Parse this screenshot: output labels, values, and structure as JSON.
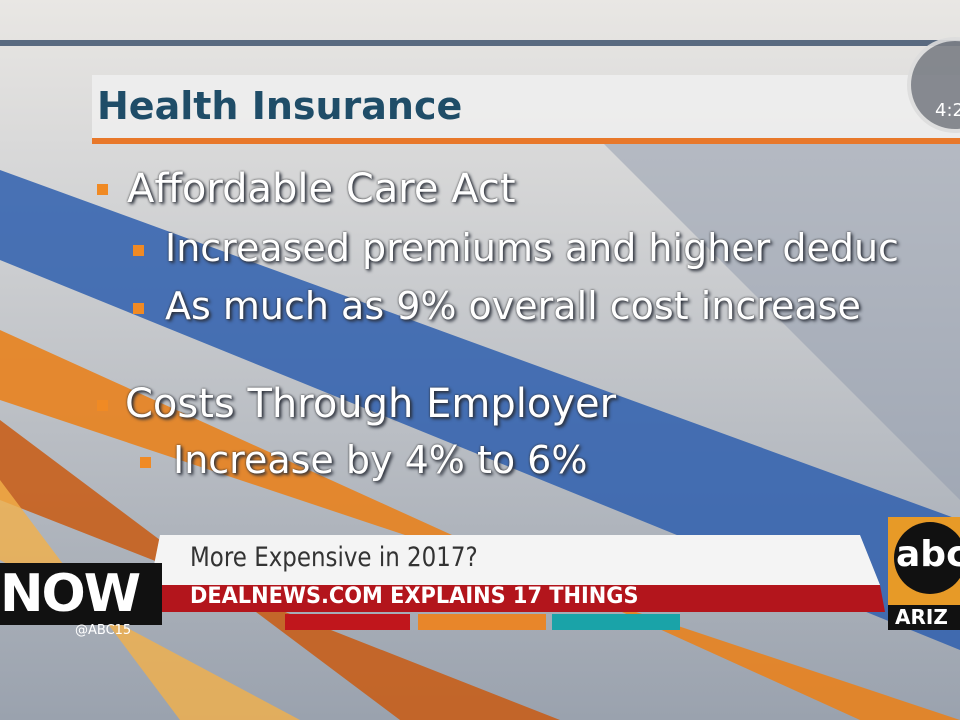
{
  "slide": {
    "title": "Health Insurance",
    "bullets": [
      {
        "text": "Affordable Care Act",
        "sub": [
          "Increased premiums and higher deduc",
          "As much as 9% overall cost increase"
        ]
      },
      {
        "text": "Costs Through Employer",
        "sub": [
          "Increase by 4% to 6%"
        ]
      }
    ]
  },
  "lower_third": {
    "headline": "More Expensive in 2017?",
    "subhead": "DEALNEWS.COM EXPLAINS 17 THINGS"
  },
  "branding": {
    "now": "NOW",
    "handle": "@ABC15",
    "network": "abc",
    "region": "ARIZ"
  },
  "clock": {
    "time": "4:2"
  }
}
